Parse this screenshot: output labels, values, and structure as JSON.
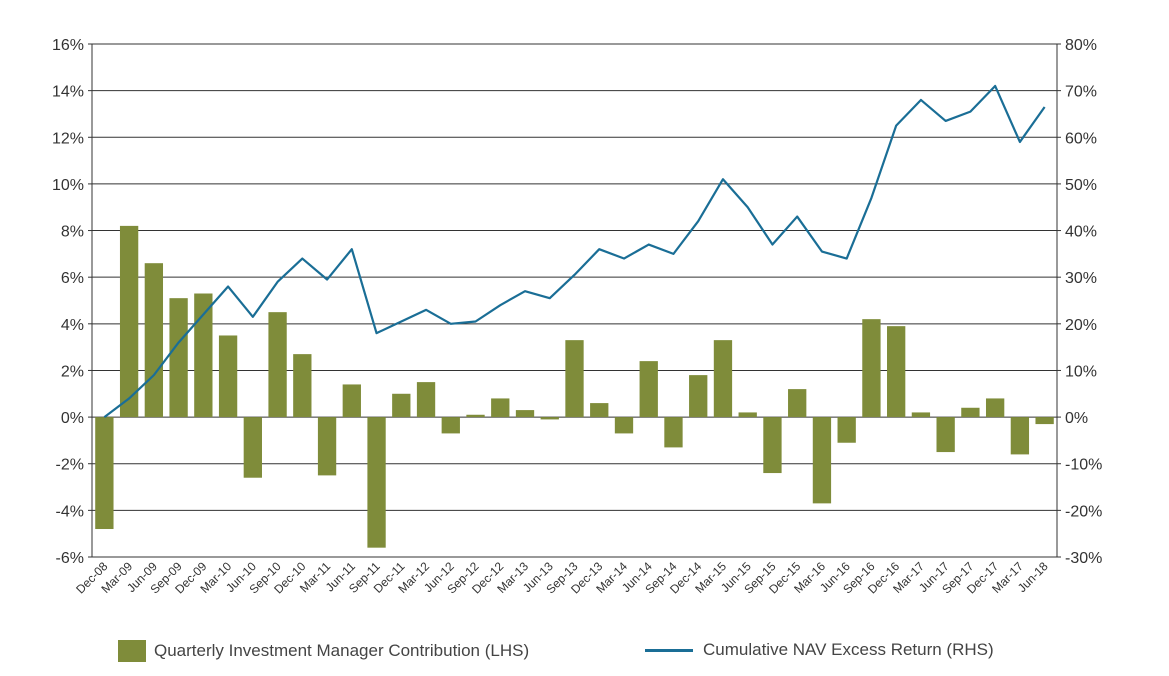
{
  "chart_data": {
    "type": "bar",
    "categories": [
      "Dec-08",
      "Mar-09",
      "Jun-09",
      "Sep-09",
      "Dec-09",
      "Mar-10",
      "Jun-10",
      "Sep-10",
      "Dec-10",
      "Mar-11",
      "Jun-11",
      "Sep-11",
      "Dec-11",
      "Mar-12",
      "Jun-12",
      "Sep-12",
      "Dec-12",
      "Mar-13",
      "Jun-13",
      "Sep-13",
      "Dec-13",
      "Mar-14",
      "Jun-14",
      "Sep-14",
      "Dec-14",
      "Mar-15",
      "Jun-15",
      "Sep-15",
      "Dec-15",
      "Mar-16",
      "Jun-16",
      "Sep-16",
      "Dec-16",
      "Mar-17",
      "Jun-17",
      "Sep-17",
      "Dec-17",
      "Mar-17",
      "Jun-18"
    ],
    "series": [
      {
        "name": "Quarterly Investment Manager Contribution (LHS)",
        "type": "bar",
        "axis": "left",
        "color": "#7f8c3a",
        "values": [
          -4.8,
          8.2,
          6.6,
          5.1,
          5.3,
          3.5,
          -2.6,
          4.5,
          2.7,
          -2.5,
          1.4,
          -5.6,
          1.0,
          1.5,
          -0.7,
          0.1,
          0.8,
          0.3,
          -0.1,
          3.3,
          0.6,
          -0.7,
          2.4,
          -1.3,
          1.8,
          3.3,
          0.2,
          -2.4,
          1.2,
          -3.7,
          -1.1,
          4.2,
          3.9,
          0.2,
          -1.5,
          0.4,
          0.8,
          -1.6,
          -0.3
        ]
      },
      {
        "name": "Cumulative NAV Excess Return (RHS)",
        "type": "line",
        "axis": "right",
        "color": "#1a6e96",
        "values": [
          0.0,
          4.0,
          9.0,
          16.0,
          22.0,
          28.0,
          21.5,
          29.0,
          34.0,
          29.5,
          36.0,
          18.0,
          20.5,
          23.0,
          20.0,
          20.5,
          24.0,
          27.0,
          25.5,
          30.5,
          36.0,
          34.0,
          37.0,
          35.0,
          42.0,
          51.0,
          45.0,
          37.0,
          43.0,
          35.5,
          34.0,
          47.0,
          62.5,
          68.0,
          63.5,
          65.5,
          71.0,
          59.0,
          66.5
        ]
      }
    ],
    "y_left": {
      "min": -6,
      "max": 16,
      "step": 2,
      "ticks": [
        "-6%",
        "-4%",
        "-2%",
        "0%",
        "2%",
        "4%",
        "6%",
        "8%",
        "10%",
        "12%",
        "14%",
        "16%"
      ]
    },
    "y_right": {
      "min": -30,
      "max": 80,
      "step": 10,
      "ticks": [
        "-30%",
        "-20%",
        "-10%",
        "0%",
        "10%",
        "20%",
        "30%",
        "40%",
        "50%",
        "60%",
        "70%",
        "80%"
      ]
    },
    "grid": true,
    "legend_position": "bottom",
    "legend": {
      "bar_label": "Quarterly Investment Manager Contribution (LHS)",
      "line_label": "Cumulative NAV Excess Return (RHS)"
    },
    "colors": {
      "bar": "#7f8c3a",
      "line": "#1a6e96",
      "grid": "#333333",
      "text": "#333333"
    }
  }
}
